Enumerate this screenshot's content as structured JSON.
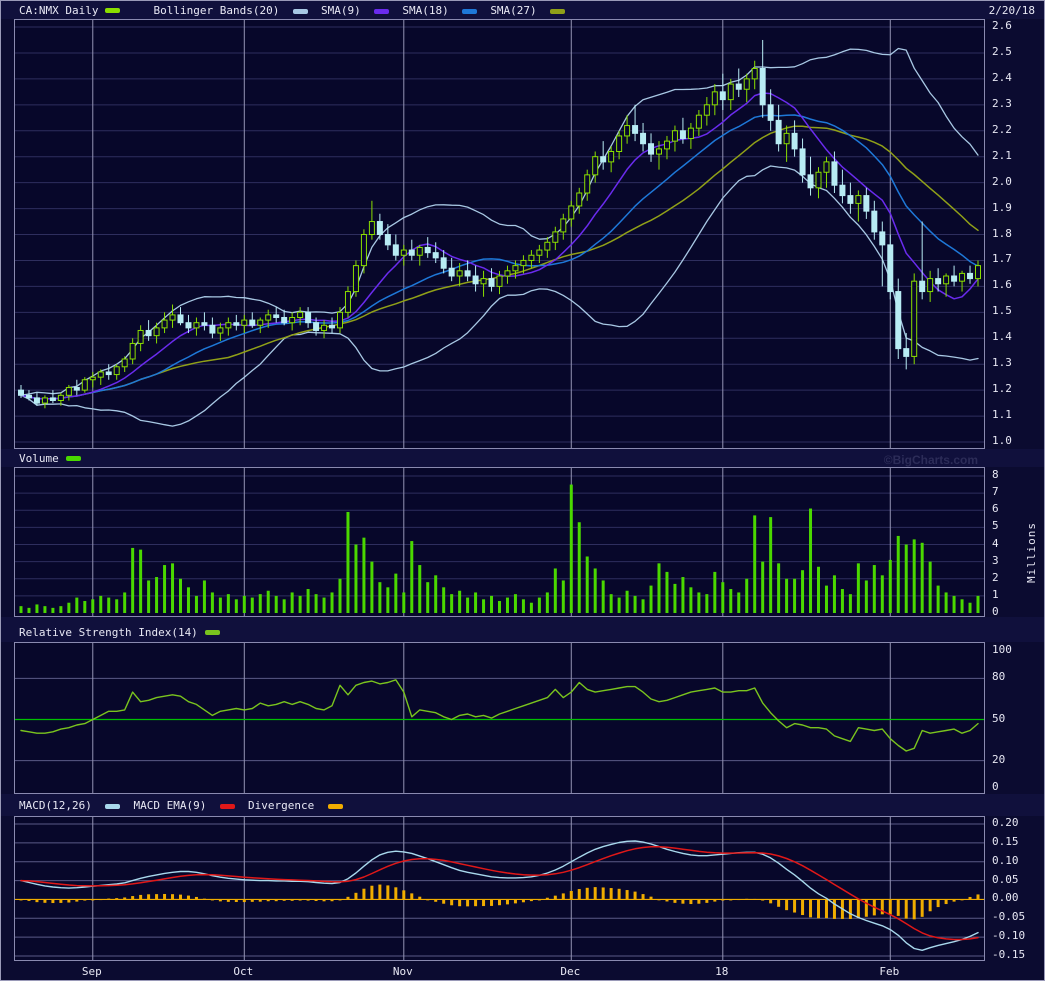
{
  "header": {
    "symbol_label": "CA:NMX Daily",
    "symbol_swatch_color": "#8ade00",
    "date": "2/20/18",
    "legend": [
      {
        "label": "Bollinger Bands(20)",
        "color": "#a8c8e4"
      },
      {
        "label": "SMA(9)",
        "color": "#6a2bee"
      },
      {
        "label": "SMA(18)",
        "color": "#1e78d8"
      },
      {
        "label": "SMA(27)",
        "color": "#90a018"
      }
    ]
  },
  "watermark": "©BigCharts.com",
  "panels": {
    "volume": {
      "label": "Volume",
      "swatch_color": "#4ad800",
      "unit_label": "Millions"
    },
    "rsi": {
      "label": "Relative Strength Index(14)",
      "swatch_color": "#7ac41e"
    },
    "macd": {
      "legend": [
        {
          "label": "MACD(12,26)",
          "color": "#a8d8ec"
        },
        {
          "label": "MACD EMA(9)",
          "color": "#e01818"
        },
        {
          "label": "Divergence",
          "color": "#f0ac00"
        }
      ]
    }
  },
  "colors": {
    "plot_bg": "#07072a",
    "strip_bg": "#10103c",
    "grid_h": "#2e2e5e",
    "grid_h_bright": "#5a5a86",
    "grid_v": "#9494b4",
    "candle_up": "#8ade00",
    "candle_down": "#b8ecf4",
    "bollinger": "#a8c8e4",
    "sma9": "#6a2bee",
    "sma18": "#1e78d8",
    "sma27": "#90a018",
    "volume_bar": "#4ad800",
    "rsi_line": "#7ac41e",
    "rsi_mid": "#00c000",
    "macd_line": "#a8d8ec",
    "macd_ema": "#e01818",
    "divergence": "#f0ac00",
    "text": "#e8e8f4"
  },
  "chart_data": {
    "type": "candlestick",
    "title": "CA:NMX Daily",
    "as_of_date": "2/20/18",
    "legend_position": "top",
    "grid": true,
    "x_ticks": [
      {
        "label": "Sep",
        "index": 9
      },
      {
        "label": "Oct",
        "index": 28
      },
      {
        "label": "Nov",
        "index": 48
      },
      {
        "label": "Dec",
        "index": 69
      },
      {
        "label": "18",
        "index": 88
      },
      {
        "label": "Feb",
        "index": 109
      }
    ],
    "price_axis": {
      "min": 1.0,
      "max": 2.6,
      "tick_labels": [
        2.6,
        2.5,
        2.4,
        2.3,
        2.2,
        2.1,
        2.0,
        1.9,
        1.8,
        1.7,
        1.6,
        1.5,
        1.4,
        1.3,
        1.2,
        1.1,
        1.0
      ]
    },
    "volume_axis": {
      "min": 0,
      "max": 8,
      "unit": "Millions",
      "tick_labels": [
        8,
        7,
        6,
        5,
        4,
        3,
        2,
        1,
        0
      ]
    },
    "rsi_axis": {
      "min": 0,
      "max": 100,
      "tick_labels": [
        100,
        80,
        50,
        20,
        0
      ],
      "midline": 50
    },
    "macd_axis": {
      "min": -0.15,
      "max": 0.2,
      "tick_labels": [
        0.2,
        0.15,
        0.1,
        0.05,
        0.0,
        -0.05,
        -0.1,
        -0.15
      ]
    },
    "indicators": {
      "bollinger_period": 20,
      "bollinger_stdev": 2,
      "sma_periods": [
        9,
        18,
        27
      ],
      "rsi_period": 14,
      "macd_fast": 12,
      "macd_slow": 26,
      "macd_signal": 9
    },
    "ohlc": [
      [
        1.2,
        1.22,
        1.17,
        1.18
      ],
      [
        1.18,
        1.2,
        1.16,
        1.17
      ],
      [
        1.17,
        1.19,
        1.14,
        1.15
      ],
      [
        1.15,
        1.18,
        1.13,
        1.17
      ],
      [
        1.17,
        1.2,
        1.15,
        1.16
      ],
      [
        1.16,
        1.19,
        1.14,
        1.18
      ],
      [
        1.18,
        1.22,
        1.16,
        1.21
      ],
      [
        1.21,
        1.24,
        1.18,
        1.2
      ],
      [
        1.2,
        1.25,
        1.19,
        1.24
      ],
      [
        1.24,
        1.27,
        1.21,
        1.25
      ],
      [
        1.25,
        1.28,
        1.22,
        1.27
      ],
      [
        1.27,
        1.3,
        1.24,
        1.26
      ],
      [
        1.26,
        1.3,
        1.24,
        1.29
      ],
      [
        1.29,
        1.33,
        1.27,
        1.32
      ],
      [
        1.32,
        1.4,
        1.3,
        1.38
      ],
      [
        1.38,
        1.45,
        1.35,
        1.43
      ],
      [
        1.43,
        1.47,
        1.39,
        1.41
      ],
      [
        1.41,
        1.46,
        1.38,
        1.44
      ],
      [
        1.44,
        1.5,
        1.42,
        1.47
      ],
      [
        1.47,
        1.53,
        1.44,
        1.49
      ],
      [
        1.49,
        1.52,
        1.45,
        1.46
      ],
      [
        1.46,
        1.49,
        1.42,
        1.44
      ],
      [
        1.44,
        1.48,
        1.41,
        1.46
      ],
      [
        1.46,
        1.5,
        1.43,
        1.45
      ],
      [
        1.45,
        1.48,
        1.4,
        1.42
      ],
      [
        1.42,
        1.46,
        1.39,
        1.44
      ],
      [
        1.44,
        1.48,
        1.41,
        1.46
      ],
      [
        1.46,
        1.49,
        1.43,
        1.45
      ],
      [
        1.45,
        1.49,
        1.42,
        1.47
      ],
      [
        1.47,
        1.5,
        1.44,
        1.45
      ],
      [
        1.45,
        1.48,
        1.42,
        1.47
      ],
      [
        1.47,
        1.51,
        1.44,
        1.49
      ],
      [
        1.49,
        1.52,
        1.46,
        1.48
      ],
      [
        1.48,
        1.51,
        1.45,
        1.46
      ],
      [
        1.46,
        1.5,
        1.43,
        1.48
      ],
      [
        1.48,
        1.52,
        1.45,
        1.5
      ],
      [
        1.5,
        1.52,
        1.44,
        1.46
      ],
      [
        1.46,
        1.48,
        1.41,
        1.43
      ],
      [
        1.43,
        1.47,
        1.4,
        1.45
      ],
      [
        1.45,
        1.48,
        1.42,
        1.44
      ],
      [
        1.44,
        1.52,
        1.42,
        1.5
      ],
      [
        1.5,
        1.6,
        1.48,
        1.58
      ],
      [
        1.58,
        1.7,
        1.56,
        1.68
      ],
      [
        1.68,
        1.82,
        1.65,
        1.8
      ],
      [
        1.8,
        1.93,
        1.78,
        1.85
      ],
      [
        1.85,
        1.88,
        1.78,
        1.8
      ],
      [
        1.8,
        1.84,
        1.74,
        1.76
      ],
      [
        1.76,
        1.8,
        1.7,
        1.72
      ],
      [
        1.72,
        1.76,
        1.68,
        1.74
      ],
      [
        1.74,
        1.78,
        1.7,
        1.72
      ],
      [
        1.72,
        1.76,
        1.68,
        1.75
      ],
      [
        1.75,
        1.79,
        1.71,
        1.73
      ],
      [
        1.73,
        1.77,
        1.69,
        1.71
      ],
      [
        1.71,
        1.74,
        1.65,
        1.67
      ],
      [
        1.67,
        1.71,
        1.62,
        1.64
      ],
      [
        1.64,
        1.69,
        1.6,
        1.66
      ],
      [
        1.66,
        1.7,
        1.62,
        1.64
      ],
      [
        1.64,
        1.68,
        1.58,
        1.61
      ],
      [
        1.61,
        1.66,
        1.56,
        1.63
      ],
      [
        1.63,
        1.67,
        1.58,
        1.6
      ],
      [
        1.6,
        1.66,
        1.57,
        1.64
      ],
      [
        1.64,
        1.68,
        1.61,
        1.66
      ],
      [
        1.66,
        1.7,
        1.63,
        1.68
      ],
      [
        1.68,
        1.72,
        1.65,
        1.7
      ],
      [
        1.7,
        1.74,
        1.67,
        1.72
      ],
      [
        1.72,
        1.76,
        1.69,
        1.74
      ],
      [
        1.74,
        1.79,
        1.71,
        1.77
      ],
      [
        1.77,
        1.83,
        1.74,
        1.81
      ],
      [
        1.81,
        1.88,
        1.78,
        1.86
      ],
      [
        1.86,
        1.93,
        1.83,
        1.91
      ],
      [
        1.91,
        1.98,
        1.88,
        1.96
      ],
      [
        1.96,
        2.05,
        1.93,
        2.03
      ],
      [
        2.03,
        2.12,
        2.0,
        2.1
      ],
      [
        2.1,
        2.16,
        2.05,
        2.08
      ],
      [
        2.08,
        2.14,
        2.04,
        2.12
      ],
      [
        2.12,
        2.2,
        2.09,
        2.18
      ],
      [
        2.18,
        2.26,
        2.15,
        2.22
      ],
      [
        2.22,
        2.3,
        2.16,
        2.19
      ],
      [
        2.19,
        2.23,
        2.12,
        2.15
      ],
      [
        2.15,
        2.19,
        2.08,
        2.11
      ],
      [
        2.11,
        2.16,
        2.05,
        2.13
      ],
      [
        2.13,
        2.18,
        2.09,
        2.16
      ],
      [
        2.16,
        2.22,
        2.12,
        2.2
      ],
      [
        2.2,
        2.25,
        2.15,
        2.17
      ],
      [
        2.17,
        2.23,
        2.13,
        2.21
      ],
      [
        2.21,
        2.28,
        2.18,
        2.26
      ],
      [
        2.26,
        2.33,
        2.22,
        2.3
      ],
      [
        2.3,
        2.38,
        2.26,
        2.35
      ],
      [
        2.35,
        2.42,
        2.28,
        2.32
      ],
      [
        2.32,
        2.4,
        2.28,
        2.38
      ],
      [
        2.38,
        2.44,
        2.33,
        2.36
      ],
      [
        2.36,
        2.42,
        2.31,
        2.4
      ],
      [
        2.4,
        2.47,
        2.36,
        2.44
      ],
      [
        2.44,
        2.55,
        2.25,
        2.3
      ],
      [
        2.3,
        2.36,
        2.2,
        2.24
      ],
      [
        2.24,
        2.3,
        2.12,
        2.15
      ],
      [
        2.15,
        2.22,
        2.08,
        2.19
      ],
      [
        2.19,
        2.24,
        2.1,
        2.13
      ],
      [
        2.13,
        2.17,
        2.0,
        2.03
      ],
      [
        2.03,
        2.1,
        1.95,
        1.98
      ],
      [
        1.98,
        2.06,
        1.94,
        2.04
      ],
      [
        2.04,
        2.1,
        1.98,
        2.08
      ],
      [
        2.08,
        2.12,
        1.96,
        1.99
      ],
      [
        1.99,
        2.05,
        1.92,
        1.95
      ],
      [
        1.95,
        2.0,
        1.88,
        1.92
      ],
      [
        1.92,
        1.97,
        1.85,
        1.95
      ],
      [
        1.95,
        1.98,
        1.86,
        1.89
      ],
      [
        1.89,
        1.93,
        1.78,
        1.81
      ],
      [
        1.81,
        1.85,
        1.6,
        1.76
      ],
      [
        1.76,
        1.8,
        1.55,
        1.58
      ],
      [
        1.58,
        1.63,
        1.32,
        1.36
      ],
      [
        1.36,
        1.42,
        1.28,
        1.33
      ],
      [
        1.33,
        1.65,
        1.3,
        1.62
      ],
      [
        1.62,
        1.85,
        1.55,
        1.58
      ],
      [
        1.58,
        1.66,
        1.54,
        1.63
      ],
      [
        1.63,
        1.67,
        1.58,
        1.61
      ],
      [
        1.61,
        1.65,
        1.56,
        1.64
      ],
      [
        1.64,
        1.68,
        1.6,
        1.62
      ],
      [
        1.62,
        1.66,
        1.58,
        1.65
      ],
      [
        1.65,
        1.68,
        1.61,
        1.63
      ],
      [
        1.63,
        1.7,
        1.6,
        1.68
      ]
    ],
    "volume_millions": [
      0.4,
      0.3,
      0.5,
      0.4,
      0.3,
      0.4,
      0.6,
      0.9,
      0.7,
      0.8,
      1.0,
      0.9,
      0.8,
      1.2,
      3.8,
      3.7,
      1.9,
      2.1,
      2.8,
      2.9,
      2.0,
      1.5,
      1.0,
      1.9,
      1.2,
      0.9,
      1.1,
      0.8,
      1.0,
      0.9,
      1.1,
      1.3,
      1.0,
      0.8,
      1.2,
      1.0,
      1.4,
      1.1,
      0.9,
      1.2,
      2.0,
      5.9,
      4.0,
      4.4,
      3.0,
      1.8,
      1.5,
      2.3,
      1.2,
      4.2,
      2.8,
      1.8,
      2.2,
      1.5,
      1.1,
      1.3,
      0.9,
      1.2,
      0.8,
      1.0,
      0.7,
      0.9,
      1.1,
      0.8,
      0.6,
      0.9,
      1.2,
      2.6,
      1.9,
      7.5,
      5.3,
      3.3,
      2.6,
      1.9,
      1.1,
      0.9,
      1.3,
      1.0,
      0.8,
      1.6,
      2.9,
      2.4,
      1.7,
      2.1,
      1.5,
      1.2,
      1.1,
      2.4,
      1.8,
      1.4,
      1.2,
      2.0,
      5.7,
      3.0,
      5.6,
      2.9,
      2.0,
      2.0,
      2.5,
      6.1,
      2.7,
      1.6,
      2.2,
      1.4,
      1.1,
      2.9,
      1.9,
      2.8,
      2.2,
      3.1,
      4.5,
      4.0,
      4.3,
      4.1,
      3.0,
      1.6,
      1.2,
      1.0,
      0.8,
      0.6,
      1.0
    ],
    "rsi_14": [
      42,
      41,
      40,
      40,
      41,
      43,
      44,
      46,
      47,
      50,
      53,
      56,
      56,
      57,
      70,
      63,
      64,
      66,
      67,
      68,
      67,
      63,
      61,
      57,
      53,
      56,
      57,
      58,
      57,
      58,
      62,
      60,
      61,
      63,
      61,
      63,
      61,
      58,
      57,
      60,
      75,
      68,
      75,
      77,
      78,
      76,
      77,
      79,
      70,
      52,
      57,
      56,
      55,
      52,
      50,
      53,
      54,
      52,
      53,
      51,
      54,
      56,
      58,
      60,
      62,
      64,
      66,
      72,
      66,
      70,
      77,
      72,
      70,
      71,
      72,
      73,
      74,
      74,
      70,
      65,
      63,
      64,
      66,
      68,
      70,
      71,
      72,
      73,
      70,
      70,
      71,
      71,
      73,
      62,
      55,
      49,
      44,
      47,
      46,
      44,
      44,
      43,
      38,
      36,
      34,
      44,
      43,
      42,
      43,
      36,
      31,
      27,
      29,
      42,
      40,
      41,
      42,
      43,
      40,
      42,
      47
    ],
    "macd_line": [
      0.05,
      0.045,
      0.04,
      0.036,
      0.033,
      0.031,
      0.03,
      0.031,
      0.033,
      0.035,
      0.037,
      0.039,
      0.041,
      0.044,
      0.05,
      0.056,
      0.061,
      0.065,
      0.069,
      0.072,
      0.074,
      0.074,
      0.072,
      0.068,
      0.063,
      0.059,
      0.056,
      0.054,
      0.052,
      0.051,
      0.05,
      0.05,
      0.049,
      0.049,
      0.048,
      0.048,
      0.047,
      0.045,
      0.043,
      0.042,
      0.045,
      0.055,
      0.07,
      0.088,
      0.105,
      0.118,
      0.125,
      0.128,
      0.126,
      0.122,
      0.115,
      0.108,
      0.1,
      0.092,
      0.084,
      0.077,
      0.072,
      0.068,
      0.064,
      0.06,
      0.058,
      0.057,
      0.057,
      0.058,
      0.06,
      0.064,
      0.07,
      0.078,
      0.088,
      0.1,
      0.112,
      0.123,
      0.133,
      0.14,
      0.146,
      0.151,
      0.154,
      0.155,
      0.152,
      0.147,
      0.14,
      0.133,
      0.127,
      0.122,
      0.118,
      0.116,
      0.116,
      0.118,
      0.12,
      0.122,
      0.124,
      0.125,
      0.125,
      0.12,
      0.11,
      0.096,
      0.08,
      0.065,
      0.048,
      0.03,
      0.015,
      0.003,
      -0.012,
      -0.025,
      -0.038,
      -0.048,
      -0.056,
      -0.063,
      -0.07,
      -0.08,
      -0.095,
      -0.115,
      -0.13,
      -0.135,
      -0.128,
      -0.122,
      -0.117,
      -0.112,
      -0.106,
      -0.098,
      -0.088
    ]
  }
}
